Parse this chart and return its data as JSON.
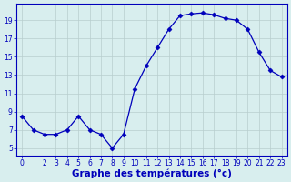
{
  "x": [
    0,
    1,
    2,
    3,
    4,
    5,
    6,
    7,
    8,
    9,
    10,
    11,
    12,
    13,
    14,
    15,
    16,
    17,
    18,
    19,
    20,
    21,
    22,
    23
  ],
  "y": [
    8.5,
    7.0,
    6.5,
    6.5,
    7.0,
    8.5,
    7.0,
    6.5,
    5.0,
    6.5,
    11.5,
    14.0,
    16.0,
    18.0,
    19.5,
    19.7,
    19.8,
    19.6,
    19.2,
    19.0,
    18.0,
    15.5,
    13.5,
    12.8
  ],
  "line_color": "#0000bb",
  "marker": "D",
  "marker_size": 2.5,
  "bg_color": "#d8eeee",
  "grid_color": "#b8cece",
  "xlabel": "Graphe des températures (°c)",
  "ylabel_ticks": [
    5,
    7,
    9,
    11,
    13,
    15,
    17,
    19
  ],
  "xlim": [
    -0.5,
    23.5
  ],
  "ylim": [
    4.2,
    20.8
  ],
  "xticks": [
    0,
    2,
    3,
    4,
    5,
    6,
    7,
    8,
    9,
    10,
    11,
    12,
    13,
    14,
    15,
    16,
    17,
    18,
    19,
    20,
    21,
    22,
    23
  ],
  "tick_fontsize": 5.5,
  "xlabel_fontsize": 7.5,
  "axis_color": "#0000bb",
  "spine_color": "#0000bb",
  "xlabel_bold": true
}
